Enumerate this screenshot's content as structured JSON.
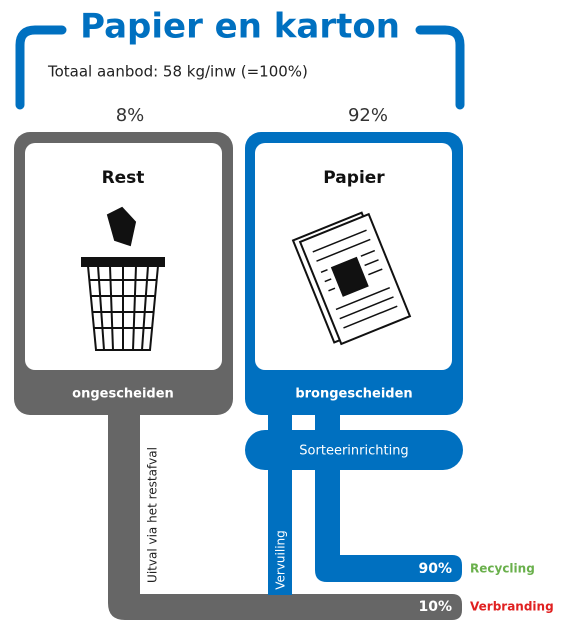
{
  "header": {
    "title": "Papier en karton",
    "subtitle": "Totaal aanbod: 58 kg/inw (=100%)"
  },
  "streams": [
    {
      "share": "8%",
      "name": "Rest",
      "collection": "ongescheiden"
    },
    {
      "share": "92%",
      "name": "Papier",
      "collection": "brongescheiden"
    }
  ],
  "sorting": "Sorteerinrichting",
  "flows": {
    "residual_dropout": "Uitval via het restafval",
    "contamination": "Vervuiling"
  },
  "outcomes": [
    {
      "share": "90%",
      "label": "Recycling"
    },
    {
      "share": "10%",
      "label": "Verbranding"
    }
  ]
}
